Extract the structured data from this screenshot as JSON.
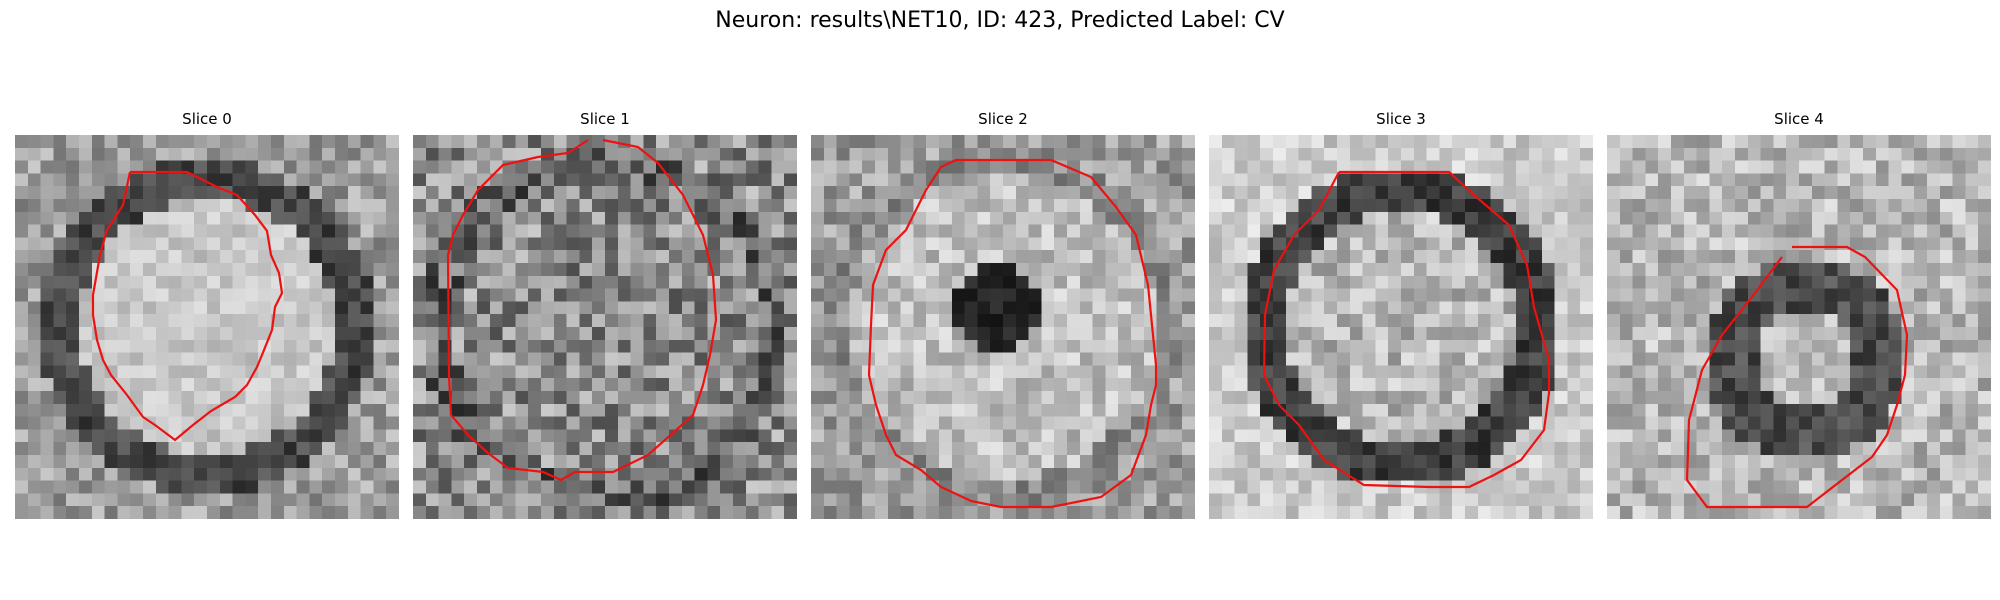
{
  "figure": {
    "title": "Neuron: results\\NET10, ID: 423, Predicted Label: CV"
  },
  "contour_color": "#ee1111",
  "slices": [
    {
      "title": "Slice 0",
      "seed": 11,
      "shape": "ring_bright_center"
    },
    {
      "title": "Slice 1",
      "seed": 23,
      "shape": "noisy_gray"
    },
    {
      "title": "Slice 2",
      "seed": 37,
      "shape": "dark_blob_center"
    },
    {
      "title": "Slice 3",
      "seed": 41,
      "shape": "ring_mottled_center"
    },
    {
      "title": "Slice 4",
      "seed": 59,
      "shape": "small_ring_lower"
    }
  ]
}
